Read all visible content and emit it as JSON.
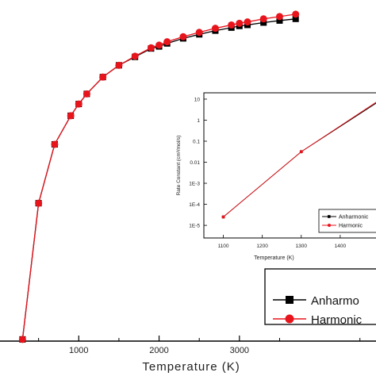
{
  "colors": {
    "anharmonic": "#000000",
    "harmonic": "#e8141c",
    "axis": "#000000",
    "background": "#ffffff"
  },
  "chart_data": [
    {
      "type": "line",
      "role": "main",
      "xlabel": "Temperature (K)",
      "ylabel": "",
      "xlim": [
        0,
        4700
      ],
      "ylim": [
        0,
        1.0
      ],
      "x_ticks": [
        1000,
        2000,
        3000
      ],
      "x_tick_labels": [
        "1000",
        "2000",
        "3000"
      ],
      "grid": false,
      "legend": {
        "placement": "bottom-right",
        "entries": [
          "Anharmonic",
          "Harmonic"
        ],
        "visible_text": [
          "Anharmo",
          "Harmonic"
        ]
      },
      "series": [
        {
          "name": "Anharmonic",
          "marker": "square",
          "x": [
            300,
            500,
            700,
            900,
            1000,
            1100,
            1300,
            1500,
            1700,
            1900,
            2000,
            2100,
            2300,
            2500,
            2700,
            2900,
            3000,
            3100,
            3300,
            3500,
            3700
          ],
          "y": [
            0.005,
            0.41,
            0.585,
            0.67,
            0.705,
            0.735,
            0.785,
            0.82,
            0.845,
            0.87,
            0.876,
            0.885,
            0.9,
            0.912,
            0.923,
            0.932,
            0.937,
            0.94,
            0.947,
            0.953,
            0.958
          ]
        },
        {
          "name": "Harmonic",
          "marker": "circle",
          "x": [
            300,
            500,
            700,
            900,
            1000,
            1100,
            1300,
            1500,
            1700,
            1900,
            2000,
            2100,
            2300,
            2500,
            2700,
            2900,
            3000,
            3100,
            3300,
            3500,
            3700
          ],
          "y": [
            0.005,
            0.41,
            0.585,
            0.67,
            0.705,
            0.735,
            0.785,
            0.82,
            0.847,
            0.872,
            0.88,
            0.89,
            0.905,
            0.918,
            0.93,
            0.94,
            0.945,
            0.949,
            0.958,
            0.965,
            0.972
          ]
        }
      ]
    },
    {
      "type": "line",
      "role": "inset",
      "xlabel": "Temperature (K)",
      "ylabel": "Rate Constant (cm³/mol/s)",
      "xlim": [
        1050,
        1500
      ],
      "x_ticks": [
        1100,
        1200,
        1300,
        1400
      ],
      "x_tick_labels": [
        "1100",
        "1200",
        "1300",
        "1400"
      ],
      "y_scale": "log",
      "ylim_log10": [
        -5.6,
        1.3
      ],
      "y_ticks_log10": [
        1,
        0,
        -1,
        -2,
        -3,
        -4,
        -5
      ],
      "y_tick_labels": [
        "10",
        "1",
        "0.1",
        "0.01",
        "1E-3",
        "1E-4",
        "1E-5"
      ],
      "grid": false,
      "legend": {
        "placement": "bottom-right",
        "entries": [
          "Anharmonic",
          "Harmonic"
        ],
        "visible_text": [
          "Anharmonic",
          "Harmonic"
        ]
      },
      "series": [
        {
          "name": "Anharmonic",
          "x": [
            1100,
            1300,
            1500
          ],
          "log10_y": [
            -4.6,
            -1.5,
            0.9
          ]
        },
        {
          "name": "Harmonic",
          "x": [
            1100,
            1300,
            1500
          ],
          "log10_y": [
            -4.6,
            -1.5,
            0.95
          ]
        }
      ]
    }
  ]
}
